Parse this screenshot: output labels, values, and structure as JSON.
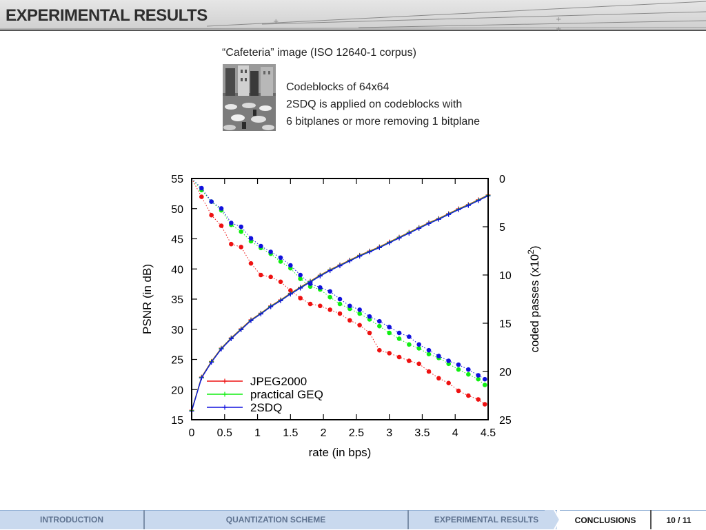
{
  "slide": {
    "title": "EXPERIMENTAL RESULTS",
    "caption": "“Cafeteria” image  (ISO 12640-1 corpus)",
    "description": [
      "Codeblocks of 64x64",
      "2SDQ is applied on codeblocks with",
      "6 bitplanes or more removing 1 bitplane"
    ]
  },
  "footer": {
    "nav": [
      "INTRODUCTION",
      "QUANTIZATION SCHEME",
      "EXPERIMENTAL RESULTS",
      "CONCLUSIONS"
    ],
    "active": "EXPERIMENTAL RESULTS",
    "page": "10 / 11"
  },
  "colors": {
    "red": "#ee1111",
    "green": "#11ee11",
    "blue": "#1111dd",
    "nav_bg": "#c9d9ee",
    "nav_text": "#5f7390"
  },
  "chart_data": {
    "type": "line",
    "xlabel": "rate (in bps)",
    "ylabel": "PSNR (in dB)",
    "y2label": "coded passes (x10",
    "y2label_sup": "2",
    "y2label_end": ")",
    "xlim": [
      0,
      4.5
    ],
    "ylim": [
      15,
      55
    ],
    "y2lim": [
      0,
      25
    ],
    "xticks": [
      "0",
      "0.5",
      "1",
      "1.5",
      "2",
      "2.5",
      "3",
      "3.5",
      "4",
      "4.5"
    ],
    "yticks": [
      "15",
      "20",
      "25",
      "30",
      "35",
      "40",
      "45",
      "50",
      "55"
    ],
    "y2ticks": [
      "0",
      "5",
      "10",
      "15",
      "20",
      "25"
    ],
    "legend_position": "bottom-left",
    "psnr_series": [
      {
        "name": "JPEG2000",
        "color": "#ee1111"
      },
      {
        "name": "practical GEQ",
        "color": "#11ee11"
      },
      {
        "name": "2SDQ",
        "color": "#1111dd"
      }
    ],
    "psnr_x": [
      0.0,
      0.15,
      0.3,
      0.45,
      0.6,
      0.75,
      0.9,
      1.05,
      1.2,
      1.35,
      1.5,
      1.65,
      1.8,
      1.95,
      2.1,
      2.25,
      2.4,
      2.55,
      2.7,
      2.85,
      3.0,
      3.15,
      3.3,
      3.45,
      3.6,
      3.75,
      3.9,
      4.05,
      4.2,
      4.35,
      4.5
    ],
    "psnr_y": [
      16.5,
      22.0,
      24.6,
      26.8,
      28.5,
      30.0,
      31.5,
      32.6,
      33.8,
      34.8,
      35.9,
      36.9,
      37.9,
      38.9,
      39.8,
      40.6,
      41.4,
      42.2,
      42.9,
      43.6,
      44.4,
      45.2,
      46.0,
      46.8,
      47.6,
      48.3,
      49.1,
      49.9,
      50.6,
      51.4,
      52.2
    ],
    "passes_series": [
      {
        "name": "JPEG2000 passes",
        "color": "#ee1111",
        "x": [
          0.0,
          0.15,
          0.3,
          0.45,
          0.6,
          0.75,
          0.9,
          1.05,
          1.2,
          1.35,
          1.5,
          1.65,
          1.8,
          1.95,
          2.1,
          2.25,
          2.4,
          2.55,
          2.7,
          2.85,
          3.0,
          3.15,
          3.3,
          3.45,
          3.6,
          3.75,
          3.9,
          4.05,
          4.2,
          4.35,
          4.45
        ],
        "y": [
          0,
          1.9,
          3.8,
          4.9,
          6.8,
          7.1,
          8.8,
          10.0,
          10.2,
          10.7,
          11.6,
          12.4,
          13.0,
          13.2,
          13.6,
          14.0,
          14.7,
          15.2,
          16.0,
          17.8,
          18.1,
          18.5,
          18.9,
          19.2,
          20.0,
          20.7,
          21.2,
          22.0,
          22.5,
          22.9,
          23.4
        ]
      },
      {
        "name": "practical GEQ passes",
        "color": "#11ee11",
        "x": [
          0.0,
          0.15,
          0.3,
          0.45,
          0.6,
          0.75,
          0.9,
          1.05,
          1.2,
          1.35,
          1.5,
          1.65,
          1.8,
          1.95,
          2.1,
          2.25,
          2.4,
          2.55,
          2.7,
          2.85,
          3.0,
          3.15,
          3.3,
          3.45,
          3.6,
          3.75,
          3.9,
          4.05,
          4.2,
          4.35,
          4.45
        ],
        "y": [
          0,
          1.2,
          2.4,
          3.3,
          4.8,
          5.5,
          6.5,
          7.2,
          7.8,
          8.6,
          9.3,
          10.4,
          11.2,
          11.5,
          12.3,
          13.0,
          13.5,
          14.0,
          14.6,
          15.3,
          16.0,
          16.6,
          17.2,
          17.6,
          18.2,
          18.6,
          19.2,
          19.8,
          20.3,
          20.8,
          21.4
        ]
      },
      {
        "name": "2SDQ passes",
        "color": "#1111dd",
        "x": [
          0.0,
          0.15,
          0.3,
          0.45,
          0.6,
          0.75,
          0.9,
          1.05,
          1.2,
          1.35,
          1.5,
          1.65,
          1.8,
          1.95,
          2.1,
          2.25,
          2.4,
          2.55,
          2.7,
          2.85,
          3.0,
          3.15,
          3.3,
          3.45,
          3.6,
          3.75,
          3.9,
          4.05,
          4.2,
          4.35,
          4.45
        ],
        "y": [
          0,
          1.0,
          2.4,
          3.1,
          4.6,
          5.0,
          6.2,
          7.0,
          7.6,
          8.2,
          9.0,
          10.0,
          10.9,
          11.3,
          11.7,
          12.5,
          13.2,
          13.6,
          14.3,
          14.8,
          15.4,
          16.0,
          16.4,
          17.2,
          17.8,
          18.4,
          18.9,
          19.3,
          19.8,
          20.4,
          20.8
        ]
      }
    ]
  }
}
